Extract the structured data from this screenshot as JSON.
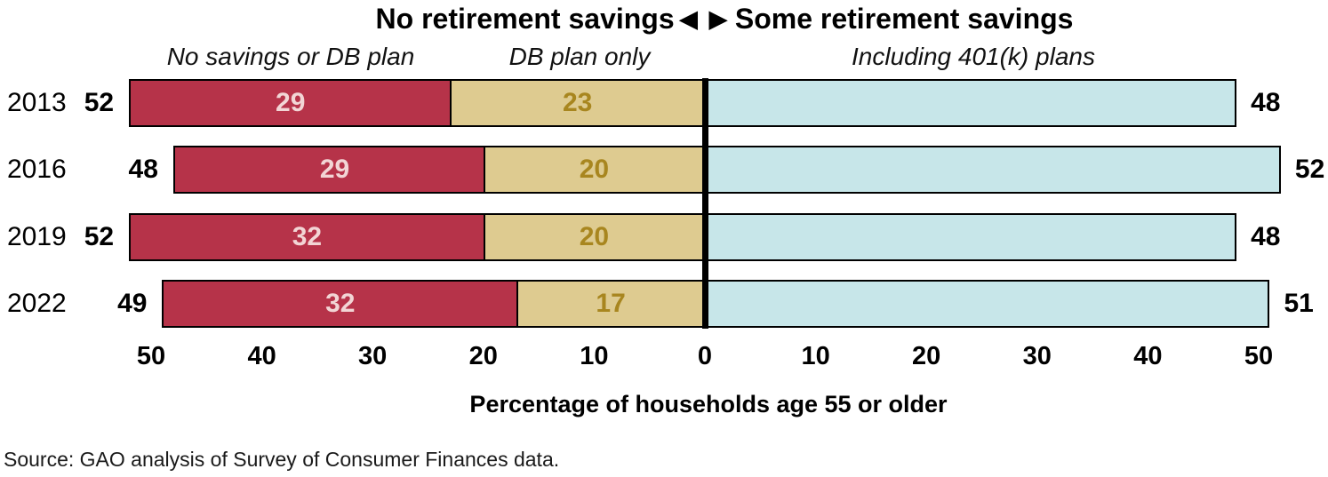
{
  "title": {
    "left": "No retirement savings",
    "arrows": "◀ ▶",
    "right": "Some retirement savings"
  },
  "column_headers": {
    "no_savings": "No savings or DB plan",
    "db_only": "DB plan only",
    "including_401k": "Including 401(k) plans"
  },
  "axis_label": "Percentage of households age 55 or older",
  "source_note": "Source: GAO analysis of Survey of Consumer Finances data.",
  "colors": {
    "no_savings_bar": "#b63349",
    "db_only_bar": "#decb90",
    "including_401k_bar": "#c7e6e9",
    "no_savings_value_label": "#f2d5d5",
    "db_only_value_label": "#a8861f",
    "bar_border": "#000000",
    "zero_line": "#000000"
  },
  "chart_data": {
    "type": "bar",
    "variant": "diverging-stacked-horizontal",
    "title": "No retirement savings ◀ ▶ Some retirement savings",
    "categories": [
      "2013",
      "2016",
      "2019",
      "2022"
    ],
    "series": [
      {
        "name": "No savings or DB plan",
        "side": "left",
        "values": [
          29,
          29,
          32,
          32
        ]
      },
      {
        "name": "DB plan only",
        "side": "left",
        "values": [
          23,
          20,
          20,
          17
        ]
      },
      {
        "name": "Including 401(k) plans",
        "side": "right",
        "values": [
          48,
          52,
          48,
          51
        ]
      }
    ],
    "left_totals": [
      52,
      48,
      52,
      49
    ],
    "right_totals": [
      48,
      52,
      48,
      51
    ],
    "xlabel": "Percentage of households age 55 or older",
    "xlim": [
      -52,
      52
    ],
    "x_ticks": [
      -50,
      -40,
      -30,
      -20,
      -10,
      0,
      10,
      20,
      30,
      40,
      50
    ],
    "grid": false,
    "legend_position": "column headers above chart"
  }
}
